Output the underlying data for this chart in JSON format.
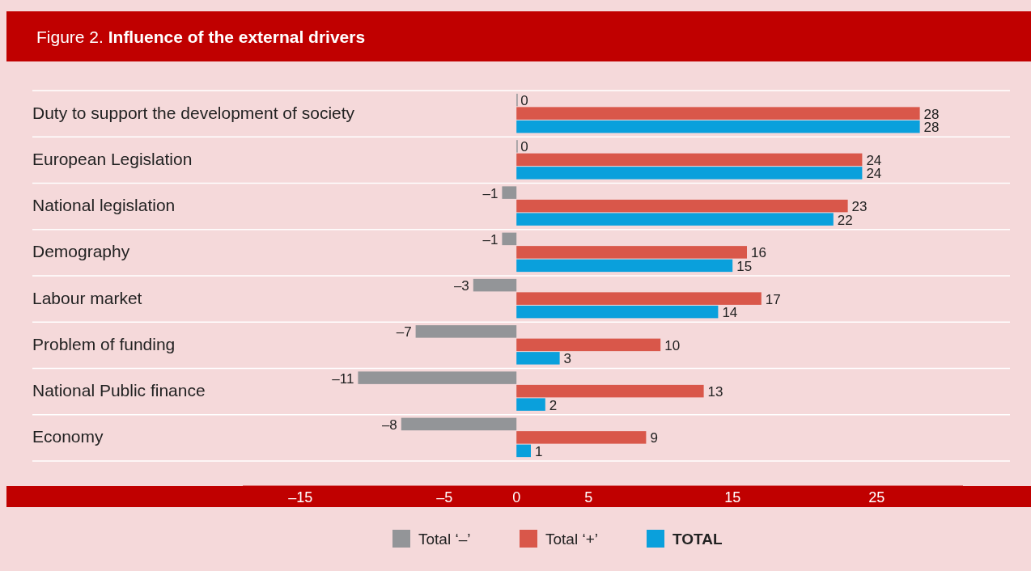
{
  "chart_data": {
    "type": "bar",
    "orientation": "horizontal",
    "title": "Figure 2. Influence of the external drivers",
    "categories": [
      "Duty to support the development of society",
      "European Legislation",
      "National legislation",
      "Demography",
      "Labour market",
      "Problem of funding",
      "National Public finance",
      "Economy"
    ],
    "series": [
      {
        "name": "Total ‘–’",
        "color": "#939598",
        "values": [
          0,
          0,
          -1,
          -1,
          -3,
          -7,
          -11,
          -8
        ],
        "value_labels": [
          "0",
          "0",
          "–1",
          "–1",
          "–3",
          "–7",
          "–11",
          "–8"
        ]
      },
      {
        "name": "Total ‘+’",
        "color": "#d9574a",
        "values": [
          28,
          24,
          23,
          16,
          17,
          10,
          13,
          9
        ],
        "value_labels": [
          "28",
          "24",
          "23",
          "16",
          "17",
          "10",
          "13",
          "9"
        ]
      },
      {
        "name": "TOTAL",
        "color": "#0aa0dc",
        "values": [
          28,
          24,
          22,
          15,
          14,
          3,
          2,
          1
        ],
        "value_labels": [
          "28",
          "24",
          "22",
          "15",
          "14",
          "3",
          "2",
          "1"
        ]
      }
    ],
    "xlim": [
      -19,
      31
    ],
    "xticks": [
      {
        "value": -15,
        "label": "–15"
      },
      {
        "value": -5,
        "label": "–5"
      },
      0,
      5,
      15,
      25
    ],
    "legend": "bottom"
  }
}
